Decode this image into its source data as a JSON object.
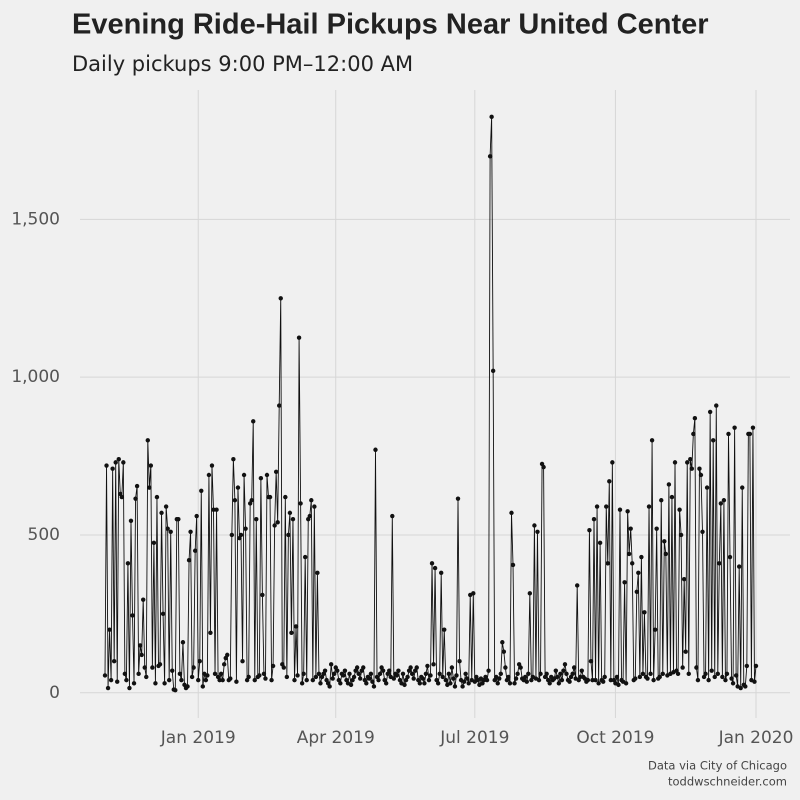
{
  "chart_data": {
    "type": "line",
    "title": "Evening Ride-Hail Pickups Near United Center",
    "subtitle": "Daily pickups 9:00 PM–12:00 AM",
    "caption": [
      "Data via City of Chicago",
      "toddwschneider.com"
    ],
    "color": "#111111",
    "grid": true,
    "ylim": [
      -80,
      1910
    ],
    "yticks": [
      0,
      500,
      {
        "value": 1000,
        "label": "1,000"
      },
      {
        "value": 1500,
        "label": "1,500"
      }
    ],
    "categories": [
      null,
      null,
      null,
      null,
      null,
      null,
      null,
      null,
      null,
      null,
      null,
      null,
      null,
      null,
      null,
      null,
      null,
      null,
      null,
      null,
      null,
      null,
      null,
      null,
      null,
      null,
      null,
      null,
      null,
      null,
      null,
      null,
      null,
      null,
      null,
      null,
      null,
      null,
      null,
      null,
      null,
      null,
      null,
      null,
      null,
      null,
      null,
      null,
      null,
      null,
      null,
      null,
      null,
      null,
      null,
      null,
      null,
      null,
      null,
      null,
      null,
      "Jan 2019",
      null,
      null,
      null,
      null,
      null,
      null,
      null,
      null,
      null,
      null,
      null,
      null,
      null,
      null,
      null,
      null,
      null,
      null,
      null,
      null,
      null,
      null,
      null,
      null,
      null,
      null,
      null,
      null,
      null,
      null,
      null,
      null,
      null,
      null,
      null,
      null,
      null,
      null,
      null,
      null,
      null,
      null,
      null,
      null,
      null,
      null,
      null,
      null,
      null,
      null,
      null,
      null,
      null,
      null,
      null,
      null,
      null,
      null,
      null,
      null,
      null,
      null,
      null,
      null,
      null,
      null,
      null,
      null,
      null,
      null,
      null,
      null,
      null,
      null,
      null,
      null,
      null,
      null,
      null,
      null,
      null,
      null,
      null,
      null,
      null,
      null,
      null,
      null,
      null,
      "Apr 2019",
      null,
      null,
      null,
      null,
      null,
      null,
      null,
      null,
      null,
      null,
      null,
      null,
      null,
      null,
      null,
      null,
      null,
      null,
      null,
      null,
      null,
      null,
      null,
      null,
      null,
      null,
      null,
      null,
      null,
      null,
      null,
      null,
      null,
      null,
      null,
      null,
      null,
      null,
      null,
      null,
      null,
      null,
      null,
      null,
      null,
      null,
      null,
      null,
      null,
      null,
      null,
      null,
      null,
      null,
      null,
      null,
      null,
      null,
      null,
      null,
      null,
      null,
      null,
      null,
      null,
      null,
      null,
      null,
      null,
      null,
      null,
      null,
      null,
      null,
      null,
      null,
      null,
      null,
      null,
      null,
      null,
      null,
      null,
      null,
      null,
      null,
      null,
      null,
      null,
      null,
      "Jul 2019",
      null,
      null,
      null,
      null,
      null,
      null,
      null,
      null,
      null,
      null,
      null,
      null,
      null,
      null,
      null,
      null,
      null,
      null,
      null,
      null,
      null,
      null,
      null,
      null,
      null,
      null,
      null,
      null,
      null,
      null,
      null,
      null,
      null,
      null,
      null,
      null,
      null,
      null,
      null,
      null,
      null,
      null,
      null,
      null,
      null,
      null,
      null,
      null,
      null,
      null,
      null,
      null,
      null,
      null,
      null,
      null,
      null,
      null,
      null,
      null,
      null,
      null,
      null,
      null,
      null,
      null,
      null,
      null,
      null,
      null,
      null,
      null,
      null,
      null,
      null,
      null,
      null,
      null,
      null,
      null,
      null,
      null,
      null,
      null,
      null,
      null,
      null,
      null,
      null,
      null,
      null,
      "Oct 2019",
      null,
      null,
      null,
      null,
      null,
      null,
      null,
      null,
      null,
      null,
      null,
      null,
      null,
      null,
      null,
      null,
      null,
      null,
      null,
      null,
      null,
      null,
      null,
      null,
      null,
      null,
      null,
      null,
      null,
      null,
      null,
      null,
      null,
      null,
      null,
      null,
      null,
      null,
      null,
      null,
      null,
      null,
      null,
      null,
      null,
      null,
      null,
      null,
      null,
      null,
      null,
      null,
      null,
      null,
      null,
      null,
      null,
      null,
      null,
      null,
      null,
      null,
      null,
      null,
      null,
      null,
      null,
      null,
      null,
      null,
      null,
      null,
      null,
      null,
      null,
      null,
      null,
      null,
      null,
      null,
      null,
      null,
      null,
      null,
      null,
      null,
      null,
      null,
      null,
      null,
      null,
      "Jan 2020"
    ],
    "values": [
      55,
      720,
      15,
      200,
      40,
      710,
      100,
      730,
      35,
      740,
      630,
      620,
      730,
      60,
      40,
      410,
      15,
      545,
      245,
      30,
      615,
      655,
      60,
      150,
      120,
      295,
      80,
      50,
      800,
      650,
      720,
      80,
      475,
      30,
      620,
      85,
      90,
      570,
      250,
      30,
      590,
      520,
      40,
      510,
      70,
      10,
      8,
      550,
      550,
      60,
      40,
      160,
      25,
      15,
      20,
      420,
      510,
      50,
      80,
      450,
      560,
      40,
      100,
      640,
      20,
      60,
      40,
      55,
      690,
      190,
      720,
      580,
      60,
      580,
      50,
      40,
      60,
      40,
      90,
      110,
      120,
      40,
      45,
      500,
      740,
      610,
      35,
      650,
      490,
      500,
      100,
      690,
      520,
      40,
      50,
      600,
      610,
      860,
      40,
      550,
      50,
      55,
      680,
      310,
      60,
      45,
      690,
      620,
      620,
      40,
      85,
      530,
      700,
      540,
      910,
      1250,
      90,
      80,
      620,
      50,
      500,
      570,
      190,
      550,
      40,
      210,
      55,
      1125,
      600,
      30,
      60,
      430,
      40,
      550,
      560,
      610,
      40,
      590,
      50,
      380,
      60,
      30,
      50,
      60,
      70,
      40,
      30,
      20,
      90,
      45,
      60,
      80,
      70,
      40,
      30,
      60,
      55,
      70,
      40,
      30,
      60,
      25,
      40,
      50,
      70,
      80,
      60,
      45,
      70,
      80,
      40,
      30,
      50,
      45,
      60,
      35,
      20,
      770,
      50,
      40,
      60,
      80,
      70,
      40,
      30,
      60,
      70,
      50,
      560,
      45,
      60,
      55,
      70,
      40,
      30,
      60,
      25,
      40,
      50,
      70,
      80,
      60,
      45,
      70,
      80,
      40,
      30,
      50,
      45,
      30,
      60,
      85,
      40,
      55,
      410,
      90,
      395,
      40,
      30,
      60,
      380,
      50,
      200,
      40,
      25,
      60,
      30,
      80,
      45,
      20,
      55,
      615,
      100,
      40,
      20,
      35,
      60,
      45,
      30,
      310,
      40,
      315,
      35,
      50,
      40,
      25,
      45,
      30,
      40,
      50,
      40,
      70,
      1700,
      1825,
      1020,
      40,
      50,
      30,
      45,
      60,
      160,
      130,
      80,
      40,
      50,
      30,
      570,
      405,
      30,
      45,
      60,
      90,
      80,
      45,
      40,
      50,
      35,
      60,
      315,
      40,
      50,
      530,
      45,
      510,
      40,
      60,
      725,
      715,
      50,
      60,
      40,
      30,
      50,
      40,
      45,
      70,
      50,
      30,
      60,
      40,
      70,
      90,
      60,
      40,
      35,
      50,
      60,
      80,
      45,
      340,
      40,
      50,
      70,
      50,
      45,
      35,
      40,
      515,
      100,
      40,
      550,
      40,
      590,
      30,
      475,
      40,
      35,
      50,
      590,
      410,
      670,
      40,
      730,
      40,
      30,
      50,
      25,
      580,
      40,
      35,
      350,
      30,
      575,
      440,
      520,
      410,
      40,
      45,
      320,
      380,
      50,
      430,
      60,
      255,
      50,
      45,
      590,
      60,
      800,
      40,
      200,
      520,
      45,
      50,
      610,
      60,
      480,
      440,
      55,
      660,
      60,
      620,
      65,
      730,
      70,
      60,
      580,
      500,
      80,
      360,
      130,
      730,
      60,
      740,
      710,
      820,
      870,
      80,
      40,
      710,
      690,
      510,
      50,
      60,
      650,
      40,
      890,
      70,
      800,
      50,
      910,
      60,
      410,
      600,
      50,
      610,
      40,
      60,
      820,
      430,
      45,
      30,
      840,
      55,
      20,
      400,
      15,
      650,
      25,
      20,
      85,
      820,
      820,
      40,
      840,
      35,
      85
    ]
  }
}
